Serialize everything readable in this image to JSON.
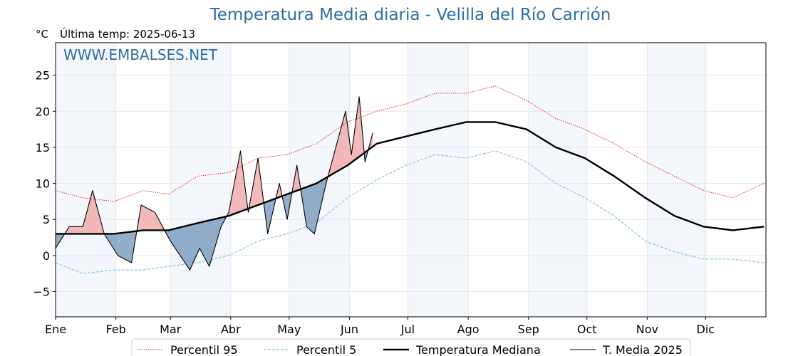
{
  "chart_data": {
    "type": "line",
    "title": "Temperatura Media diaria - Velilla del Río Carrión",
    "unit_label": "°C",
    "last_temp_label": "Última temp: 2025-06-13",
    "watermark": "WWW.EMBALSES.NET",
    "xlabel": "",
    "ylabel": "",
    "ylim": [
      -8.5,
      29.5
    ],
    "xlim": [
      1,
      366
    ],
    "yticks": [
      -5,
      0,
      5,
      10,
      15,
      20,
      25
    ],
    "ytick_labels": [
      "−5",
      "0",
      "5",
      "10",
      "15",
      "20",
      "25"
    ],
    "months": [
      {
        "label": "Ene",
        "day": 1
      },
      {
        "label": "Feb",
        "day": 32
      },
      {
        "label": "Mar",
        "day": 60
      },
      {
        "label": "Abr",
        "day": 91
      },
      {
        "label": "May",
        "day": 121
      },
      {
        "label": "Jun",
        "day": 152
      },
      {
        "label": "Jul",
        "day": 182
      },
      {
        "label": "Ago",
        "day": 213
      },
      {
        "label": "Sep",
        "day": 244
      },
      {
        "label": "Oct",
        "day": 274
      },
      {
        "label": "Nov",
        "day": 305
      },
      {
        "label": "Dic",
        "day": 335
      }
    ],
    "grid": true,
    "legend_position": "bottom",
    "colors": {
      "p95": "#e8190e",
      "p5": "#8ec5db",
      "median": "#000000",
      "current": "#000000",
      "above": "#f0a3a3",
      "below": "#6e94b8",
      "band": "#dde8f3"
    },
    "series": [
      {
        "name": "Percentil 95",
        "style": "dotted-red",
        "x": [
          1,
          15,
          31,
          46,
          59,
          74,
          90,
          105,
          120,
          135,
          151,
          166,
          181,
          196,
          212,
          227,
          243,
          258,
          273,
          288,
          304,
          319,
          334,
          349,
          365
        ],
        "values": [
          9,
          8,
          7.5,
          9,
          8.5,
          11,
          11.5,
          13.5,
          14,
          15.5,
          18.5,
          20,
          21,
          22.5,
          22.5,
          23.5,
          21.5,
          19,
          17.5,
          15.5,
          13,
          11,
          9,
          8,
          10
        ]
      },
      {
        "name": "Percentil 5",
        "style": "dashed-blue",
        "x": [
          1,
          15,
          31,
          46,
          59,
          74,
          90,
          105,
          120,
          135,
          151,
          166,
          181,
          196,
          212,
          227,
          243,
          258,
          273,
          288,
          304,
          319,
          334,
          349,
          365
        ],
        "values": [
          -1,
          -2.5,
          -2,
          -2,
          -1.5,
          -1,
          0,
          2,
          3,
          4.5,
          8,
          10.5,
          12.5,
          14,
          13.5,
          14.5,
          13,
          10,
          8,
          5.5,
          2,
          0.5,
          -0.5,
          -0.5,
          -1
        ]
      },
      {
        "name": "Temperatura Mediana",
        "style": "thick-black",
        "x": [
          1,
          15,
          31,
          46,
          59,
          74,
          90,
          105,
          120,
          135,
          151,
          166,
          181,
          196,
          212,
          227,
          243,
          258,
          273,
          288,
          304,
          319,
          334,
          349,
          365
        ],
        "values": [
          3,
          3,
          3,
          3.5,
          3.5,
          4.5,
          5.5,
          7,
          8.5,
          10,
          12.5,
          15.5,
          16.5,
          17.5,
          18.5,
          18.5,
          17.5,
          15,
          13.5,
          11,
          8,
          5.5,
          4,
          3.5,
          4
        ]
      },
      {
        "name": "T. Media 2025",
        "style": "thin-black",
        "x": [
          1,
          8,
          15,
          20,
          26,
          33,
          40,
          45,
          52,
          60,
          65,
          70,
          75,
          80,
          86,
          90,
          96,
          100,
          105,
          110,
          116,
          120,
          125,
          130,
          134,
          140,
          145,
          150,
          153,
          157,
          160,
          164
        ],
        "values": [
          1,
          4,
          4,
          9,
          3,
          0,
          -1,
          7,
          6,
          2,
          0,
          -2,
          1,
          -1.5,
          4,
          6,
          14.5,
          6,
          13.5,
          3,
          10,
          5,
          12.5,
          4,
          3,
          10,
          15,
          20,
          14,
          22,
          13,
          17
        ]
      }
    ],
    "legend": [
      {
        "label": "Percentil 95",
        "style": "dotted-red"
      },
      {
        "label": "Percentil 5",
        "style": "dashed-blue"
      },
      {
        "label": "Temperatura Mediana",
        "style": "thick-black"
      },
      {
        "label": "T. Media 2025",
        "style": "thin-black"
      }
    ]
  }
}
